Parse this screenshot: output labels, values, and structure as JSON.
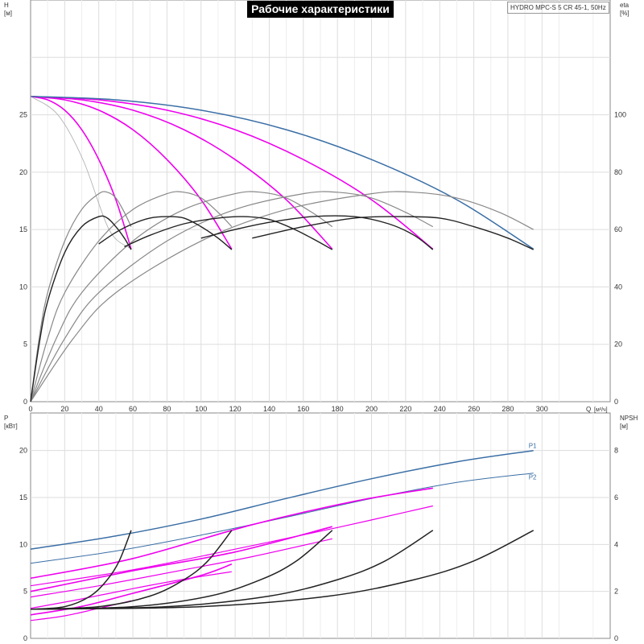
{
  "chart_data": [
    {
      "type": "line",
      "title": "Рабочие характеристики",
      "model": "HYDRO MPC-S 5 CR 45-1, 50Hz",
      "ylabel": "H",
      "yunit": "[м]",
      "y2label": "eta",
      "y2unit": "[%]",
      "xlabel": "Q",
      "xunit": "[м³/ч]",
      "xlim": [
        0,
        340
      ],
      "ylim": [
        0,
        35
      ],
      "y2lim": [
        0,
        140
      ],
      "xticks": [
        0,
        20,
        40,
        60,
        80,
        100,
        120,
        140,
        160,
        180,
        200,
        220,
        240,
        260,
        280,
        300
      ],
      "yticks": [
        0,
        5,
        10,
        15,
        20,
        25
      ],
      "y2ticks": [
        0,
        20,
        40,
        60,
        80,
        100
      ],
      "grid": true,
      "series": [
        {
          "group": "head_pump_curves",
          "color": "#ee00ee",
          "values": [
            [
              0,
              26.6
            ],
            [
              10,
              26.3
            ],
            [
              20,
              25.4
            ],
            [
              30,
              23.7
            ],
            [
              40,
              21.1
            ],
            [
              50,
              17.6
            ],
            [
              59,
              13.3
            ]
          ]
        },
        {
          "group": "head_pump_curves",
          "color": "#ee00ee",
          "values": [
            [
              0,
              26.6
            ],
            [
              20,
              26.3
            ],
            [
              40,
              25.4
            ],
            [
              60,
              23.7
            ],
            [
              80,
              21.1
            ],
            [
              100,
              17.6
            ],
            [
              118,
              13.3
            ]
          ]
        },
        {
          "group": "head_pump_curves",
          "color": "#ee00ee",
          "values": [
            [
              0,
              26.6
            ],
            [
              30,
              26.3
            ],
            [
              60,
              25.4
            ],
            [
              90,
              23.7
            ],
            [
              120,
              21.1
            ],
            [
              150,
              17.6
            ],
            [
              177,
              13.3
            ]
          ]
        },
        {
          "group": "head_pump_curves",
          "color": "#ee00ee",
          "values": [
            [
              0,
              26.6
            ],
            [
              40,
              26.3
            ],
            [
              80,
              25.4
            ],
            [
              120,
              23.7
            ],
            [
              160,
              21.1
            ],
            [
              200,
              17.6
            ],
            [
              236,
              13.3
            ]
          ]
        },
        {
          "group": "head_system_curve",
          "color": "#3a6ea5",
          "values": [
            [
              0,
              26.6
            ],
            [
              50,
              26.3
            ],
            [
              100,
              25.4
            ],
            [
              150,
              23.7
            ],
            [
              200,
              21.1
            ],
            [
              250,
              17.6
            ],
            [
              295,
              13.3
            ]
          ]
        },
        {
          "group": "head_pump_curves_secondary",
          "color": "#aaaaaa",
          "values": [
            [
              0,
              26.6
            ],
            [
              16,
              25.0
            ],
            [
              31,
              21.0
            ],
            [
              46,
              15.0
            ],
            [
              58,
              13.4
            ]
          ]
        },
        {
          "group": "efficiency_curves",
          "color": "#888888",
          "values": [
            [
              0,
              0
            ],
            [
              5,
              22
            ],
            [
              10,
              38
            ],
            [
              20,
              56
            ],
            [
              30,
              67
            ],
            [
              40,
              72.5
            ],
            [
              45,
              73
            ],
            [
              50,
              71
            ],
            [
              55,
              66
            ],
            [
              59,
              61
            ]
          ]
        },
        {
          "group": "efficiency_curves",
          "color": "#888888",
          "values": [
            [
              0,
              0
            ],
            [
              10,
              22
            ],
            [
              20,
              38
            ],
            [
              40,
              56
            ],
            [
              60,
              67
            ],
            [
              80,
              72.5
            ],
            [
              90,
              73
            ],
            [
              100,
              71
            ],
            [
              110,
              66
            ],
            [
              118,
              61
            ]
          ]
        },
        {
          "group": "efficiency_curves",
          "color": "#888888",
          "values": [
            [
              0,
              0
            ],
            [
              15,
              22
            ],
            [
              30,
              38
            ],
            [
              60,
              56
            ],
            [
              90,
              67
            ],
            [
              120,
              72.5
            ],
            [
              135,
              73
            ],
            [
              150,
              71
            ],
            [
              165,
              66
            ],
            [
              177,
              61
            ]
          ]
        },
        {
          "group": "efficiency_curves",
          "color": "#888888",
          "values": [
            [
              0,
              0
            ],
            [
              20,
              22
            ],
            [
              40,
              38
            ],
            [
              80,
              56
            ],
            [
              120,
              67
            ],
            [
              160,
              72.5
            ],
            [
              180,
              73
            ],
            [
              200,
              71
            ],
            [
              220,
              66
            ],
            [
              236,
              61
            ]
          ]
        },
        {
          "group": "efficiency_curves",
          "color": "#888888",
          "values": [
            [
              0,
              0
            ],
            [
              25,
              22
            ],
            [
              50,
              38
            ],
            [
              100,
              56
            ],
            [
              150,
              67
            ],
            [
              200,
              72.5
            ],
            [
              225,
              73
            ],
            [
              250,
              71
            ],
            [
              275,
              66
            ],
            [
              295,
              60
            ]
          ]
        },
        {
          "group": "efficiency_curves_dark",
          "color": "#222222",
          "values": [
            [
              0,
              0
            ],
            [
              5,
              20
            ],
            [
              10,
              35
            ],
            [
              20,
              52
            ],
            [
              30,
              61
            ],
            [
              40,
              64.5
            ],
            [
              45,
              64
            ],
            [
              50,
              61
            ],
            [
              55,
              57
            ],
            [
              59,
              53
            ]
          ]
        },
        {
          "group": "efficiency_curves_dark",
          "color": "#222222",
          "values": [
            [
              40,
              55
            ],
            [
              50,
              59
            ],
            [
              60,
              62
            ],
            [
              70,
              64
            ],
            [
              80,
              64.5
            ],
            [
              90,
              64
            ],
            [
              100,
              61
            ],
            [
              110,
              57
            ],
            [
              118,
              53
            ]
          ]
        },
        {
          "group": "efficiency_curves_dark",
          "color": "#222222",
          "values": [
            [
              55,
              54
            ],
            [
              70,
              58
            ],
            [
              90,
              62
            ],
            [
              110,
              64
            ],
            [
              125,
              64.5
            ],
            [
              140,
              63.5
            ],
            [
              155,
              60
            ],
            [
              168,
              56
            ],
            [
              177,
              53
            ]
          ]
        },
        {
          "group": "efficiency_curves_dark",
          "color": "#222222",
          "values": [
            [
              100,
              57
            ],
            [
              120,
              60
            ],
            [
              140,
              62.5
            ],
            [
              165,
              64.5
            ],
            [
              190,
              64.5
            ],
            [
              210,
              62
            ],
            [
              225,
              58
            ],
            [
              236,
              53
            ]
          ]
        },
        {
          "group": "efficiency_curves_dark",
          "color": "#222222",
          "values": [
            [
              130,
              57
            ],
            [
              160,
              61
            ],
            [
              190,
              64
            ],
            [
              215,
              64.5
            ],
            [
              240,
              64
            ],
            [
              260,
              61
            ],
            [
              280,
              57
            ],
            [
              295,
              53
            ]
          ]
        }
      ]
    },
    {
      "type": "line",
      "ylabel": "P",
      "yunit": "[кВт]",
      "y2label": "NPSH",
      "y2unit": "[м]",
      "xlim": [
        0,
        340
      ],
      "ylim": [
        0,
        24
      ],
      "y2lim": [
        0,
        9.6
      ],
      "xticks": [
        0,
        20,
        40,
        60,
        80,
        100,
        120,
        140,
        160,
        180,
        200,
        220,
        240,
        260,
        280,
        300
      ],
      "yticks": [
        0,
        5,
        10,
        15,
        20
      ],
      "y2ticks": [
        0,
        2,
        4,
        6,
        8
      ],
      "grid": true,
      "annotations": [
        "P1",
        "P2"
      ],
      "series": [
        {
          "name": "P1",
          "color": "#3a6ea5",
          "values": [
            [
              0,
              9.5
            ],
            [
              50,
              10.9
            ],
            [
              100,
              12.7
            ],
            [
              150,
              14.9
            ],
            [
              200,
              17.0
            ],
            [
              250,
              18.8
            ],
            [
              295,
              20.0
            ]
          ]
        },
        {
          "name": "P2",
          "color": "#3a6ea5",
          "values": [
            [
              0,
              8.0
            ],
            [
              50,
              9.3
            ],
            [
              100,
              11.0
            ],
            [
              150,
              12.9
            ],
            [
              200,
              14.9
            ],
            [
              250,
              16.6
            ],
            [
              295,
              17.6
            ]
          ]
        },
        {
          "group": "power_curves",
          "color": "#ee00ee",
          "values": [
            [
              0,
              1.9
            ],
            [
              20,
              2.4
            ],
            [
              40,
              3.2
            ],
            [
              59,
              4.0
            ]
          ]
        },
        {
          "group": "power_curves",
          "color": "#ee00ee",
          "values": [
            [
              0,
              3.2
            ],
            [
              30,
              4.2
            ],
            [
              60,
              5.3
            ],
            [
              90,
              6.3
            ],
            [
              118,
              7.1
            ]
          ]
        },
        {
          "group": "power_curves",
          "color": "#ee00ee",
          "values": [
            [
              0,
              4.4
            ],
            [
              40,
              5.6
            ],
            [
              90,
              7.3
            ],
            [
              130,
              8.7
            ],
            [
              177,
              10.6
            ]
          ]
        },
        {
          "group": "power_curves",
          "color": "#ee00ee",
          "values": [
            [
              0,
              5.6
            ],
            [
              60,
              7.3
            ],
            [
              120,
              9.5
            ],
            [
              180,
              11.8
            ],
            [
              236,
              14.1
            ]
          ]
        },
        {
          "group": "power_curves_upper",
          "color": "#ee00ee",
          "values": [
            [
              0,
              2.5
            ],
            [
              30,
              3.4
            ],
            [
              60,
              4.8
            ],
            [
              100,
              6.7
            ],
            [
              118,
              7.9
            ]
          ]
        },
        {
          "group": "power_curves_upper",
          "color": "#ee00ee",
          "values": [
            [
              0,
              5.0
            ],
            [
              60,
              7.2
            ],
            [
              120,
              9.2
            ],
            [
              177,
              11.9
            ]
          ]
        },
        {
          "group": "power_curves_upper",
          "color": "#ee00ee",
          "values": [
            [
              0,
              6.4
            ],
            [
              60,
              8.5
            ],
            [
              130,
              12.1
            ],
            [
              190,
              14.6
            ],
            [
              236,
              16.0
            ]
          ]
        },
        {
          "group": "npsh_curves",
          "color": "#222222",
          "values": [
            [
              0,
              1.24
            ],
            [
              20,
              1.35
            ],
            [
              35,
              1.8
            ],
            [
              45,
              2.5
            ],
            [
              52,
              3.3
            ],
            [
              59,
              4.6
            ]
          ]
        },
        {
          "group": "npsh_curves",
          "color": "#222222",
          "values": [
            [
              0,
              1.24
            ],
            [
              40,
              1.35
            ],
            [
              70,
              1.8
            ],
            [
              90,
              2.5
            ],
            [
              104,
              3.3
            ],
            [
              118,
              4.6
            ]
          ]
        },
        {
          "group": "npsh_curves",
          "color": "#222222",
          "values": [
            [
              0,
              1.24
            ],
            [
              60,
              1.35
            ],
            [
              105,
              1.8
            ],
            [
              135,
              2.5
            ],
            [
              156,
              3.3
            ],
            [
              177,
              4.6
            ]
          ]
        },
        {
          "group": "npsh_curves",
          "color": "#222222",
          "values": [
            [
              0,
              1.24
            ],
            [
              80,
              1.35
            ],
            [
              140,
              1.8
            ],
            [
              180,
              2.5
            ],
            [
              208,
              3.3
            ],
            [
              236,
              4.6
            ]
          ]
        },
        {
          "group": "npsh_curves",
          "color": "#222222",
          "values": [
            [
              0,
              1.24
            ],
            [
              100,
              1.35
            ],
            [
              175,
              1.8
            ],
            [
              225,
              2.5
            ],
            [
              260,
              3.3
            ],
            [
              295,
              4.6
            ]
          ]
        }
      ]
    }
  ]
}
